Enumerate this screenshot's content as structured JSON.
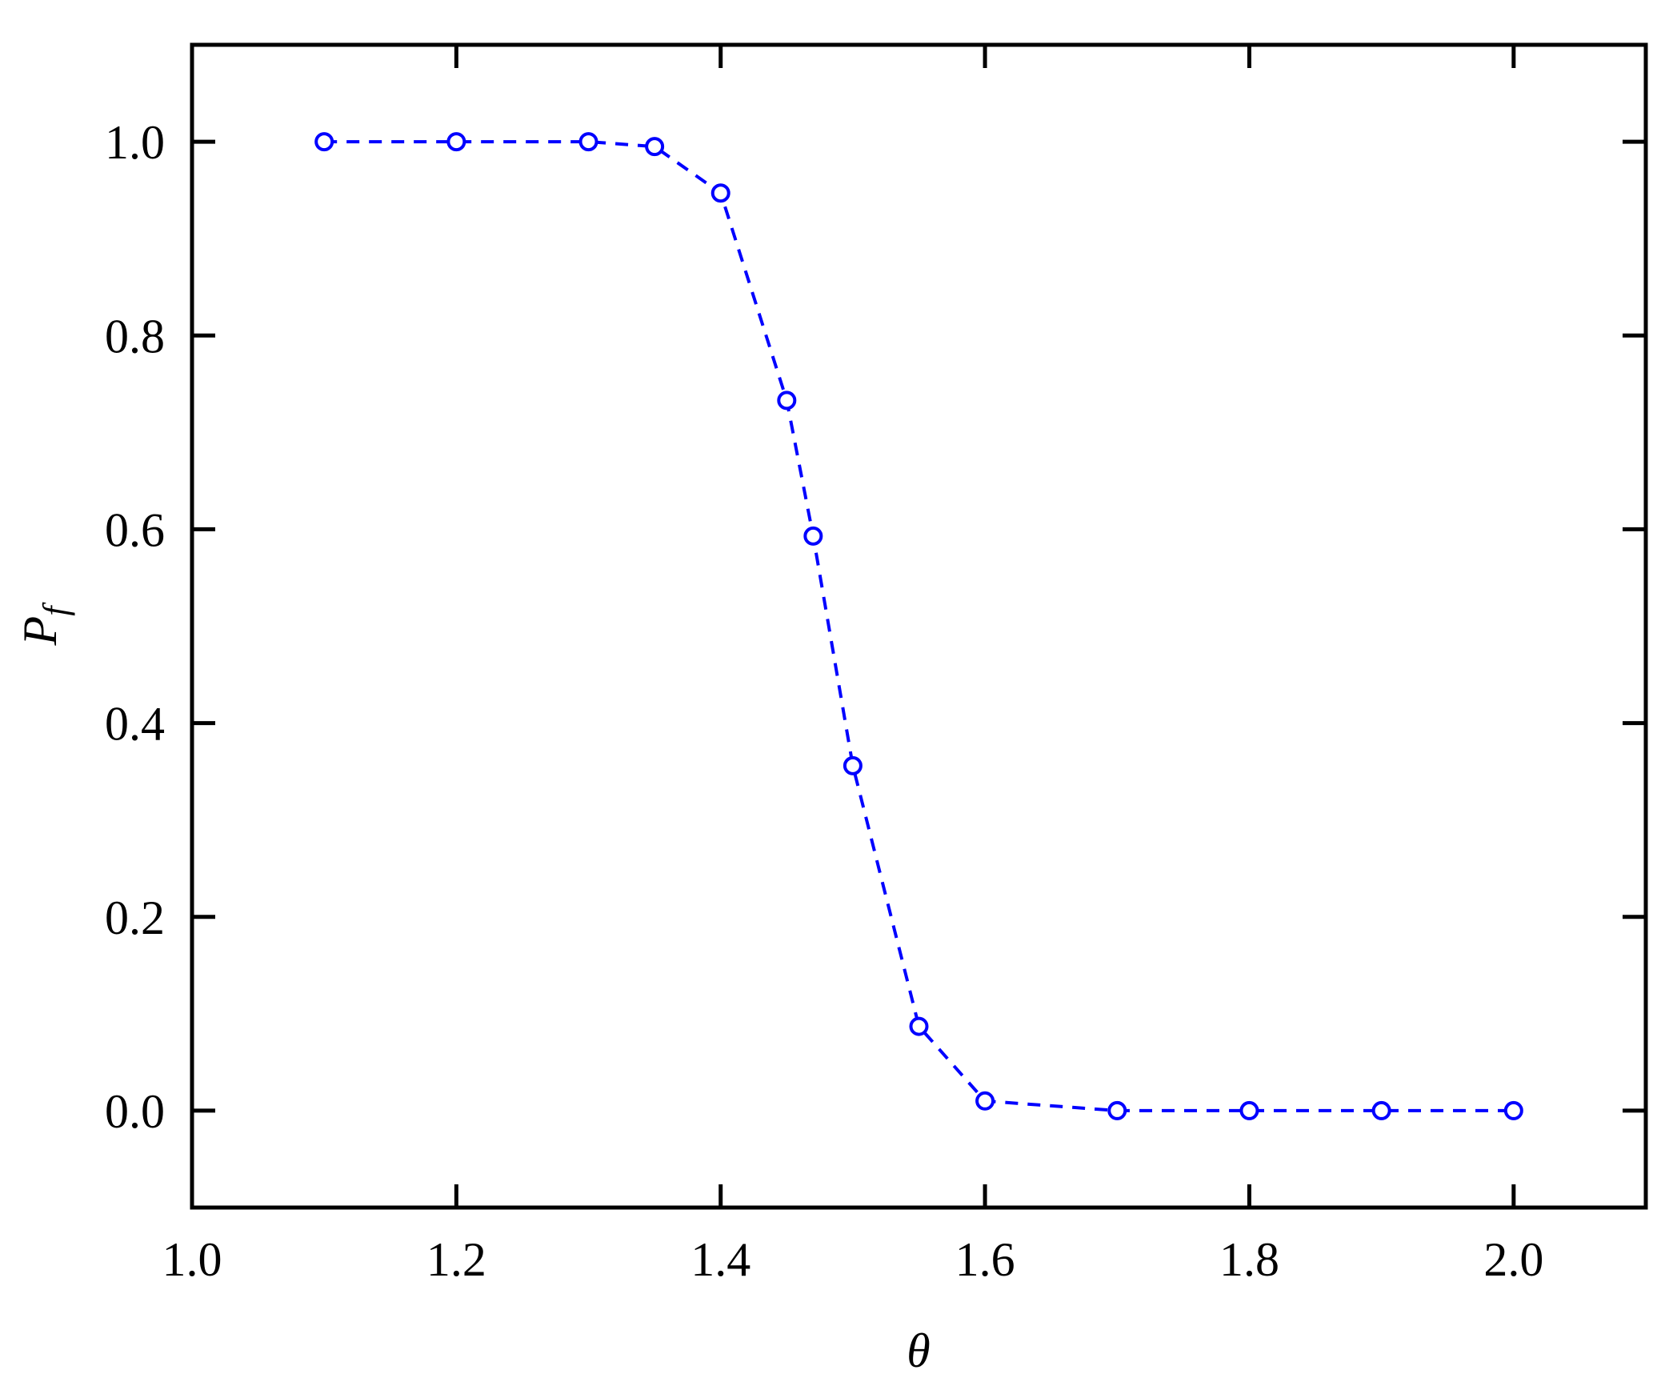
{
  "chart_data": {
    "type": "line",
    "xlabel": "θ",
    "ylabel": {
      "text": "P",
      "subscript": "f"
    },
    "x": [
      1.1,
      1.2,
      1.3,
      1.35,
      1.4,
      1.45,
      1.47,
      1.5,
      1.55,
      1.6,
      1.7,
      1.8,
      1.9,
      2.0
    ],
    "series": [
      {
        "color": "#0000ff",
        "values": [
          1.0,
          1.0,
          1.0,
          0.995,
          0.947,
          0.733,
          0.593,
          0.356,
          0.087,
          0.01,
          0.0,
          0.0,
          0.0,
          0.0
        ]
      }
    ],
    "xlim": [
      1.0,
      2.1
    ],
    "ylim": [
      -0.1,
      1.1
    ],
    "xticks": [
      {
        "value": 1.0,
        "label": "1.0"
      },
      1.2,
      1.4,
      1.6,
      1.8,
      {
        "value": 2.0,
        "label": "2.0"
      }
    ],
    "yticks": [
      {
        "value": 0.0,
        "label": "0.0"
      },
      0.2,
      0.4,
      0.6,
      0.8,
      {
        "value": 1.0,
        "label": "1.0"
      }
    ],
    "grid": false
  }
}
